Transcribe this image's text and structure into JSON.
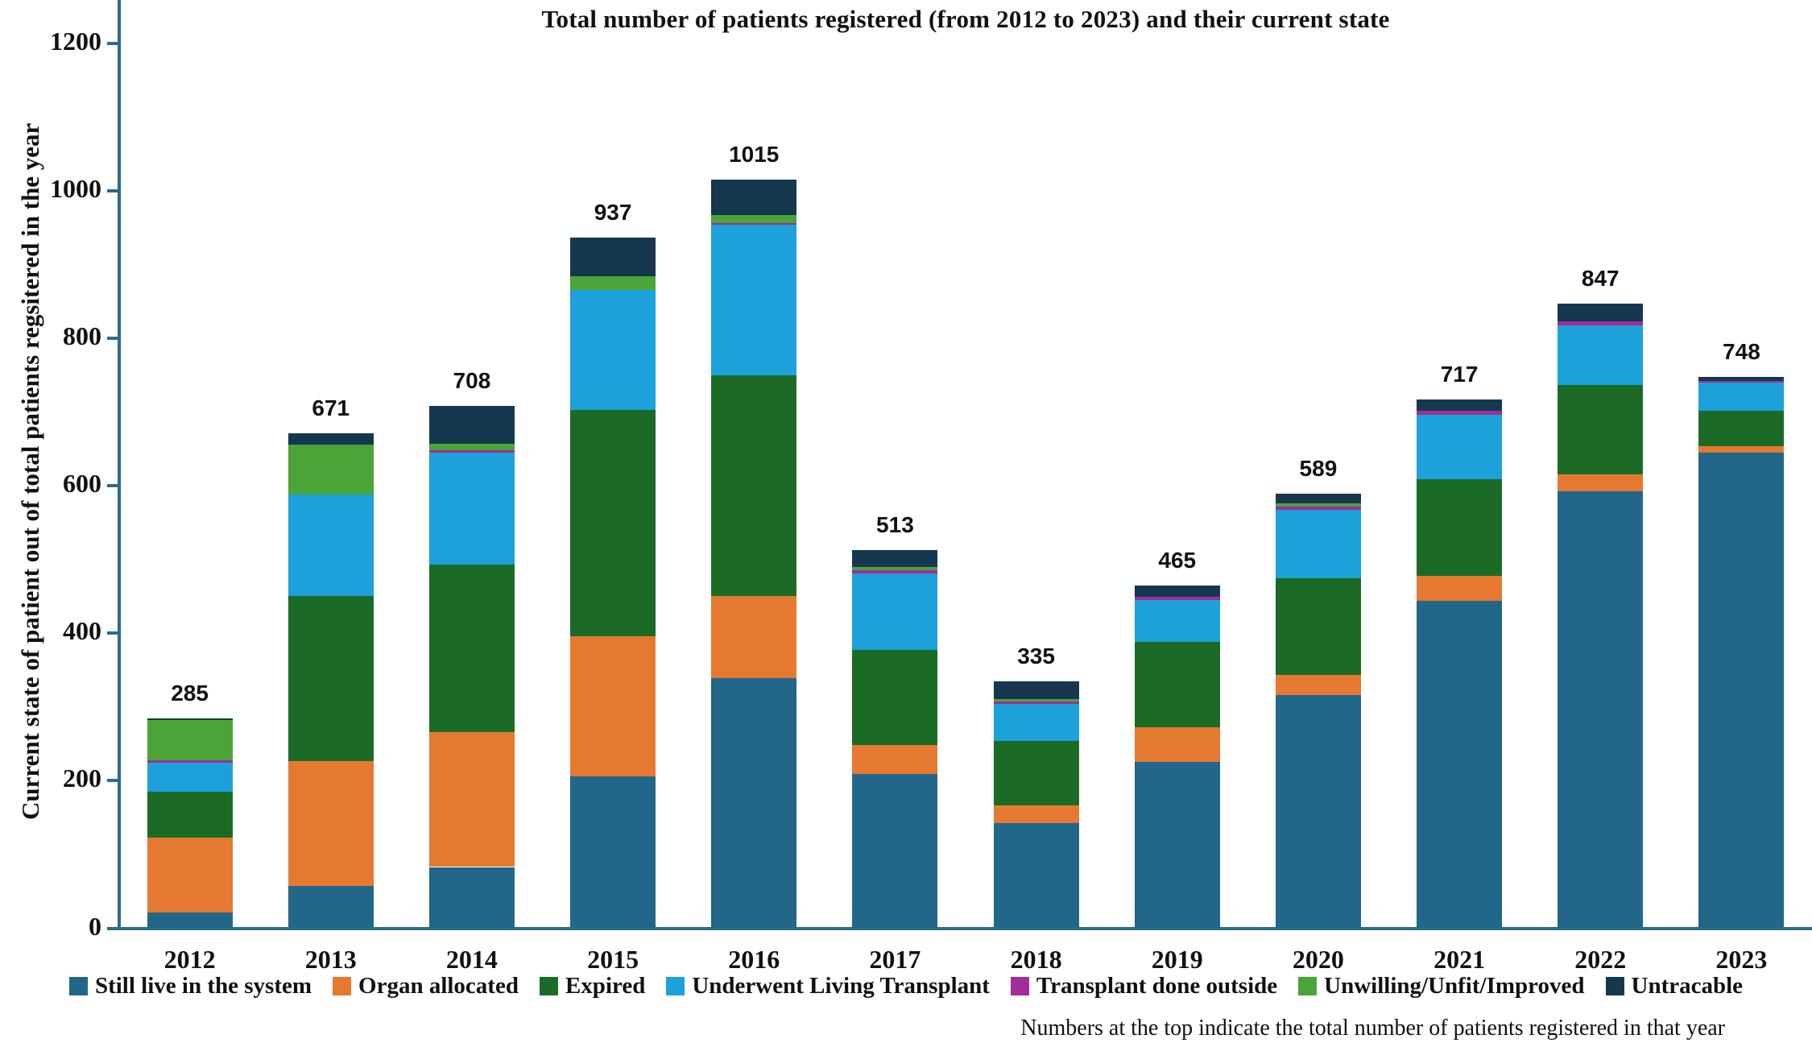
{
  "title": "Total number of patients registered (from 2012 to 2023) and their current state",
  "y_axis": {
    "label": "Current state of patient out of total patients regsitered in the year",
    "ticks": [
      0,
      200,
      400,
      600,
      800,
      1000,
      1200
    ]
  },
  "footnote": "Numbers at the top indicate the total number of patients registered in that year",
  "colors": {
    "axis": "#2e6a8c",
    "still_live": "#226689",
    "organ_allocated": "#e57932",
    "expired": "#1b6b27",
    "underwent_living_transplant": "#1da1da",
    "transplant_done_outside": "#a12d98",
    "unwilling_unfit_improved": "#4ba437",
    "untracable": "#15384e"
  },
  "chart_data": {
    "type": "bar",
    "stacked": true,
    "grid": false,
    "legend_position": "bottom",
    "title": "Total number of patients registered (from 2012 to 2023) and their current state",
    "xlabel": "",
    "ylabel": "Current state of patient out of total patients regsitered in the year",
    "ylim": [
      0,
      1260
    ],
    "categories": [
      "2012",
      "2013",
      "2014",
      "2015",
      "2016",
      "2017",
      "2018",
      "2019",
      "2020",
      "2021",
      "2022",
      "2023"
    ],
    "totals": [
      285,
      671,
      708,
      937,
      1015,
      513,
      335,
      465,
      589,
      717,
      847,
      748
    ],
    "series": [
      {
        "name": "Still live in the system",
        "color": "#226689",
        "values": [
          21,
          57,
          83,
          206,
          339,
          209,
          142,
          225,
          316,
          444,
          593,
          645
        ]
      },
      {
        "name": "Organ allocated",
        "color": "#e57932",
        "values": [
          102,
          170,
          183,
          190,
          112,
          39,
          25,
          47,
          28,
          34,
          22,
          9
        ]
      },
      {
        "name": "Expired",
        "color": "#1b6b27",
        "values": [
          62,
          224,
          227,
          307,
          299,
          129,
          87,
          116,
          131,
          131,
          122,
          48
        ]
      },
      {
        "name": "Underwent Living Transplant",
        "color": "#1da1da",
        "values": [
          39,
          137,
          152,
          163,
          204,
          104,
          50,
          57,
          92,
          87,
          81,
          38
        ]
      },
      {
        "name": "Transplant done outside",
        "color": "#a12d98",
        "values": [
          4,
          0,
          3,
          0,
          2,
          4,
          3,
          4,
          5,
          6,
          5,
          2
        ]
      },
      {
        "name": "Unwilling/Unfit/Improved",
        "color": "#4ba437",
        "values": [
          54,
          68,
          9,
          18,
          11,
          5,
          4,
          0,
          4,
          0,
          0,
          0
        ]
      },
      {
        "name": "Untracable",
        "color": "#15384e",
        "values": [
          3,
          15,
          51,
          53,
          48,
          23,
          24,
          16,
          13,
          15,
          24,
          6
        ]
      }
    ]
  }
}
